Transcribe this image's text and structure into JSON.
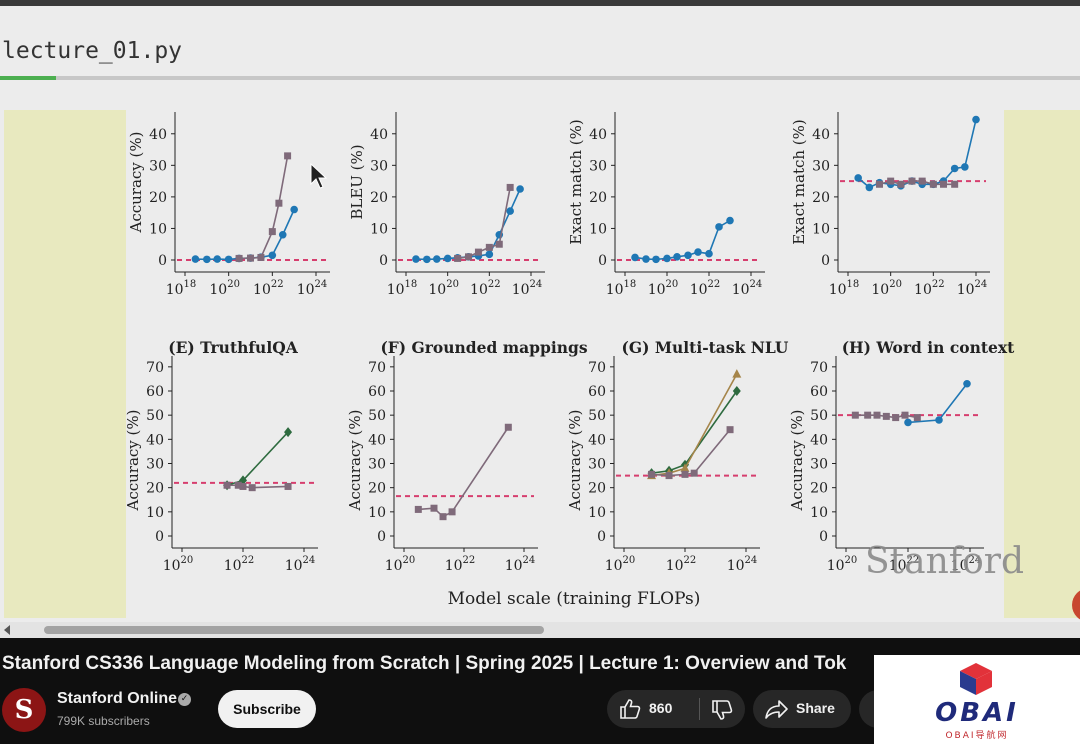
{
  "editor": {
    "tab_title": "lecture_01.py"
  },
  "slide": {
    "top_row_ylabels": [
      "Accuracy (%)",
      "BLEU (%)",
      "Exact match (%)",
      "Exact match (%)"
    ],
    "top_row_yticks": [
      "0",
      "10",
      "20",
      "30",
      "40"
    ],
    "top_row_xticks": [
      "10",
      "10",
      "10",
      "10"
    ],
    "top_row_xtick_exponents": [
      "18",
      "20",
      "22",
      "24"
    ],
    "bottom_panel_titles": [
      "(E) TruthfulQA",
      "(F) Grounded mappings",
      "(G) Multi-task NLU",
      "(H) Word in context"
    ],
    "bottom_row_ylabel": "Accuracy (%)",
    "bottom_row_yticks": [
      "0",
      "10",
      "20",
      "30",
      "40",
      "50",
      "60",
      "70"
    ],
    "bottom_row_xticks": [
      "10",
      "10",
      "10"
    ],
    "bottom_row_xtick_exponents": [
      "20",
      "22",
      "24"
    ],
    "shared_xlabel": "Model scale (training FLOPs)",
    "logo_text": "Stanford"
  },
  "chart_data": [
    {
      "type": "line",
      "panel": "top-1",
      "ylabel": "Accuracy (%)",
      "ylim": [
        0,
        45
      ],
      "xscale": "log",
      "xlim": [
        1e+18,
        1e+24
      ],
      "baseline": 0,
      "series": [
        {
          "color": "#1f77b4",
          "x": [
            3e+18,
            1e+19,
            3e+19,
            1e+20,
            3e+20,
            1e+21,
            3e+21,
            1e+22,
            3e+22,
            1e+23
          ],
          "y": [
            0.3,
            0.2,
            0.3,
            0.2,
            0.5,
            0.6,
            0.9,
            1.5,
            8,
            16
          ]
        },
        {
          "color": "#7f6a7a",
          "x": [
            3e+20,
            1e+21,
            3e+21,
            1e+22,
            2e+22,
            5e+22
          ],
          "y": [
            0.5,
            0.6,
            0.8,
            9,
            18,
            33
          ]
        }
      ]
    },
    {
      "type": "line",
      "panel": "top-2",
      "ylabel": "BLEU (%)",
      "ylim": [
        0,
        45
      ],
      "xscale": "log",
      "xlim": [
        1e+18,
        1e+24
      ],
      "baseline": 0,
      "series": [
        {
          "color": "#1f77b4",
          "x": [
            3e+18,
            1e+19,
            3e+19,
            1e+20,
            3e+20,
            1e+21,
            3e+21,
            1e+22,
            3e+22,
            1e+23,
            3e+23
          ],
          "y": [
            0.3,
            0.2,
            0.3,
            0.5,
            0.7,
            1.0,
            1.3,
            1.8,
            8,
            15.5,
            22.5
          ]
        },
        {
          "color": "#7f6a7a",
          "x": [
            3e+20,
            1e+21,
            3e+21,
            1e+22,
            3e+22,
            1e+23
          ],
          "y": [
            0.5,
            1,
            2.5,
            4,
            5,
            23
          ]
        }
      ]
    },
    {
      "type": "line",
      "panel": "top-3",
      "ylabel": "Exact match (%)",
      "ylim": [
        0,
        45
      ],
      "xscale": "log",
      "xlim": [
        1e+18,
        1e+24
      ],
      "baseline": 0,
      "series": [
        {
          "color": "#1f77b4",
          "x": [
            3e+18,
            1e+19,
            3e+19,
            1e+20,
            3e+20,
            1e+21,
            3e+21,
            1e+22,
            3e+22,
            1e+23
          ],
          "y": [
            0.8,
            0.3,
            0.2,
            0.5,
            1,
            1.5,
            2.5,
            2,
            10.5,
            12.5
          ]
        }
      ]
    },
    {
      "type": "line",
      "panel": "top-4",
      "ylabel": "Exact match (%)",
      "ylim": [
        0,
        45
      ],
      "xscale": "log",
      "xlim": [
        1e+18,
        1e+24
      ],
      "baseline": 25,
      "series": [
        {
          "color": "#1f77b4",
          "x": [
            3e+18,
            1e+19,
            3e+19,
            1e+20,
            3e+20,
            1e+21,
            3e+21,
            1e+22,
            3e+22,
            1e+23,
            3e+23,
            1e+24
          ],
          "y": [
            26,
            23,
            24.5,
            24,
            23.5,
            25,
            24,
            24,
            25,
            29,
            29.5,
            44.5
          ]
        },
        {
          "color": "#7f6a7a",
          "x": [
            3e+19,
            1e+20,
            3e+20,
            1e+21,
            3e+21,
            1e+22,
            3e+22,
            1e+23
          ],
          "y": [
            24,
            25,
            24,
            25,
            25,
            24,
            24,
            24
          ]
        }
      ]
    },
    {
      "type": "line",
      "panel": "E",
      "title": "(E) TruthfulQA",
      "ylabel": "Accuracy (%)",
      "ylim": [
        0,
        70
      ],
      "xscale": "log",
      "xlim": [
        1e+20,
        1e+24
      ],
      "baseline": 22,
      "series": [
        {
          "color": "#2e6b3f",
          "x": [
            3e+21,
            1e+22,
            3e+23
          ],
          "y": [
            21,
            23,
            43
          ]
        },
        {
          "color": "#7f6a7a",
          "x": [
            3e+21,
            7e+21,
            1e+22,
            2e+22,
            3e+23
          ],
          "y": [
            21,
            21,
            20.5,
            20,
            20.5
          ]
        }
      ]
    },
    {
      "type": "line",
      "panel": "F",
      "title": "(F) Grounded mappings",
      "ylabel": "Accuracy (%)",
      "ylim": [
        0,
        70
      ],
      "xscale": "log",
      "xlim": [
        1e+20,
        1e+24
      ],
      "baseline": 16.5,
      "series": [
        {
          "color": "#7f6a7a",
          "x": [
            3e+20,
            1e+21,
            2e+21,
            4e+21,
            3e+23
          ],
          "y": [
            11,
            11.5,
            8,
            10,
            45
          ]
        }
      ]
    },
    {
      "type": "line",
      "panel": "G",
      "title": "(G) Multi-task NLU",
      "ylabel": "Accuracy (%)",
      "ylim": [
        0,
        70
      ],
      "xscale": "log",
      "xlim": [
        1e+20,
        1e+24
      ],
      "baseline": 25,
      "series": [
        {
          "color": "#2e6b3f",
          "x": [
            8e+20,
            3e+21,
            1e+22,
            5e+23
          ],
          "y": [
            26,
            27,
            29.5,
            60
          ]
        },
        {
          "color": "#a5854a",
          "x": [
            8e+20,
            3e+21,
            1e+22,
            5e+23
          ],
          "y": [
            25,
            26,
            28,
            67
          ]
        },
        {
          "color": "#7f6a7a",
          "x": [
            8e+20,
            3e+21,
            1e+22,
            2e+22,
            3e+23
          ],
          "y": [
            25.5,
            25,
            25.5,
            26,
            44
          ]
        }
      ]
    },
    {
      "type": "line",
      "panel": "H",
      "title": "(H) Word in context",
      "ylabel": "Accuracy (%)",
      "ylim": [
        0,
        70
      ],
      "xscale": "log",
      "xlim": [
        1e+20,
        1e+24
      ],
      "baseline": 50,
      "series": [
        {
          "color": "#1f77b4",
          "x": [
            1e+22,
            1e+23,
            8e+23
          ],
          "y": [
            47,
            48,
            63
          ]
        },
        {
          "color": "#7f6a7a",
          "x": [
            2e+20,
            5e+20,
            1e+21,
            2e+21,
            4e+21,
            8e+21,
            2e+22
          ],
          "y": [
            50,
            50,
            50,
            49.5,
            49,
            50,
            49
          ]
        }
      ]
    }
  ],
  "video": {
    "title": "Stanford CS336 Language Modeling from Scratch | Spring 2025 | Lecture 1: Overview and Tok",
    "channel_avatar_letter": "S",
    "channel_name": "Stanford Online",
    "subscribers": "799K subscribers",
    "subscribe_label": "Subscribe",
    "like_count": "860",
    "share_label": "Share"
  },
  "watermark": {
    "text": "OBAI",
    "subtext": "OBAI导航网"
  },
  "colors": {
    "slide_background": "#ececec",
    "slide_side_strip": "#e8e9bf",
    "baseline_dashed": "#d63e6e",
    "series_blue": "#1f77b4",
    "series_purple_gray": "#7f6a7a",
    "series_green": "#2e6b3f",
    "series_tan": "#a5854a",
    "youtube_background": "#0f0f0f"
  }
}
